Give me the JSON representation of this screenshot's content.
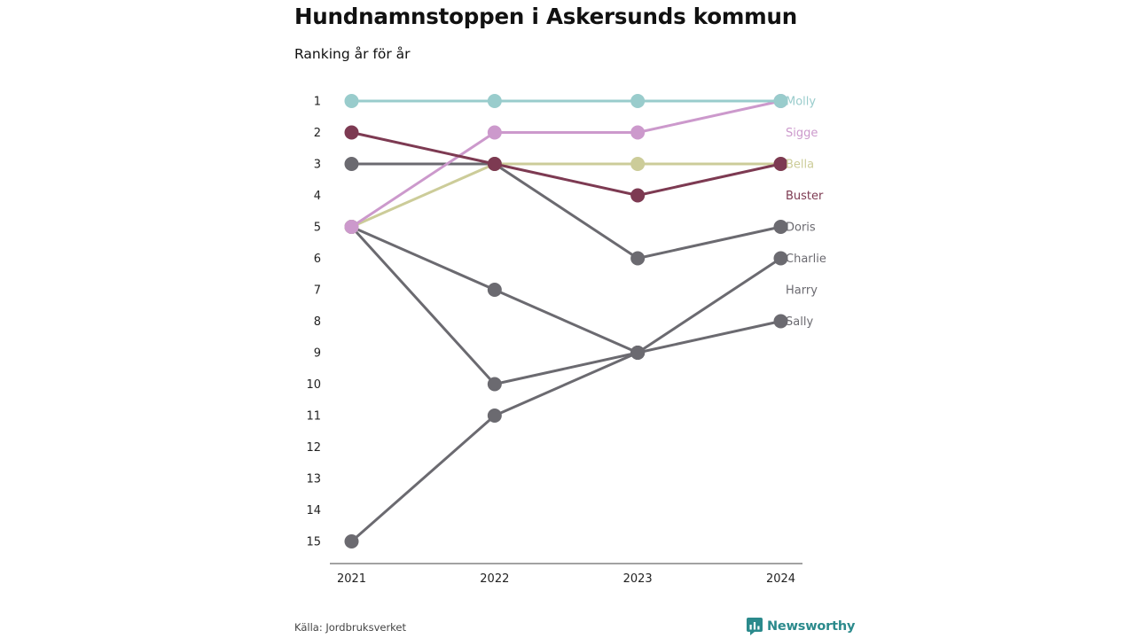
{
  "header": {
    "title": "Hundnamnstoppen i Askersunds kommun",
    "subtitle": "Ranking år för år"
  },
  "footer": {
    "source": "Källa: Jordbruksverket",
    "brand": "Newsworthy"
  },
  "colors": {
    "brand": "#2b8a8c",
    "axis": "#444444",
    "muted_series": "#6b6a70"
  },
  "chart_data": {
    "type": "line",
    "subtype": "bump",
    "title": "Hundnamnstoppen i Askersunds kommun",
    "subtitle": "Ranking år för år",
    "xlabel": "",
    "ylabel": "",
    "x": [
      "2021",
      "2022",
      "2023",
      "2024"
    ],
    "y_ticks": [
      1,
      2,
      3,
      4,
      5,
      6,
      7,
      8,
      9,
      10,
      11,
      12,
      13,
      14,
      15
    ],
    "ylim": [
      1,
      15
    ],
    "y_reversed": true,
    "grid": false,
    "series": [
      {
        "name": "Harry",
        "color": "#6b6a70",
        "values": [
          5,
          10,
          9,
          null
        ]
      },
      {
        "name": "Sally",
        "color": "#6b6a70",
        "values": [
          5,
          7,
          9,
          8
        ]
      },
      {
        "name": "Charlie",
        "color": "#6b6a70",
        "values": [
          15,
          11,
          9,
          6
        ]
      },
      {
        "name": "Doris",
        "color": "#6b6a70",
        "values": [
          3,
          3,
          6,
          5
        ]
      },
      {
        "name": "Bella",
        "color": "#cccc99",
        "values": [
          5,
          3,
          3,
          3
        ]
      },
      {
        "name": "Sigge",
        "color": "#cc99cc",
        "values": [
          5,
          2,
          2,
          1
        ]
      },
      {
        "name": "Buster",
        "color": "#7d3a52",
        "values": [
          2,
          3,
          4,
          3
        ]
      },
      {
        "name": "Molly",
        "color": "#99cccc",
        "values": [
          1,
          1,
          1,
          1
        ]
      }
    ],
    "label_order": [
      "Molly",
      "Sigge",
      "Bella",
      "Buster",
      "Doris",
      "Charlie",
      "Harry",
      "Sally"
    ]
  }
}
